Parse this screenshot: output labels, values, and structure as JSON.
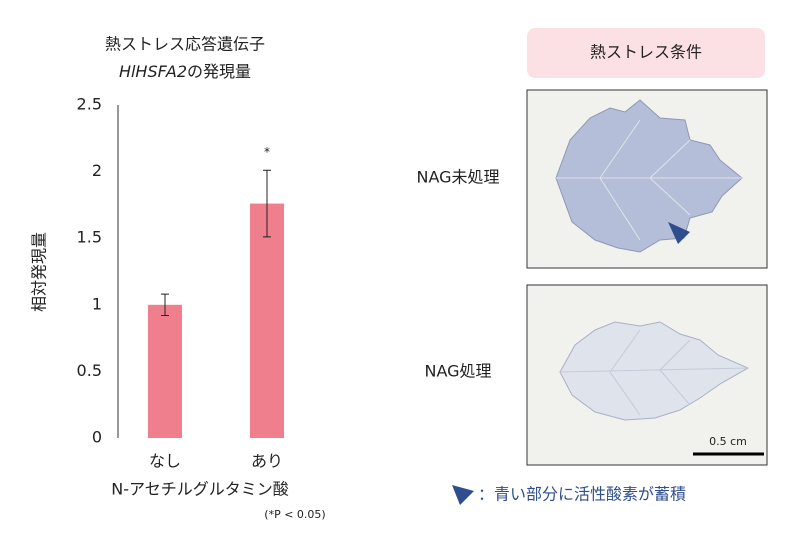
{
  "chart_data": {
    "type": "bar",
    "title": {
      "line1": "熱ストレス応答遺伝子",
      "gene": "HlHSFA2",
      "line2": "の発現量"
    },
    "y_label": "相対発現量",
    "x_label": "N-アセチルグルタミン酸",
    "categories": [
      "なし",
      "あり"
    ],
    "values": [
      1.0,
      1.76
    ],
    "errors": [
      0.08,
      0.25
    ],
    "significance": [
      null,
      "*"
    ],
    "note": "(*P < 0.05)",
    "color": "#f07f8e",
    "ylim": [
      0,
      2.5
    ],
    "yticks": [
      0,
      0.5,
      1,
      1.5,
      2,
      2.5
    ],
    "grid": false
  },
  "panel": {
    "header": "熱ストレス条件",
    "rows": [
      "NAG未処理",
      "NAG処理"
    ],
    "scale_bar": "0.5 cm",
    "legend": "：青い部分に活性酸素が蓄積"
  }
}
